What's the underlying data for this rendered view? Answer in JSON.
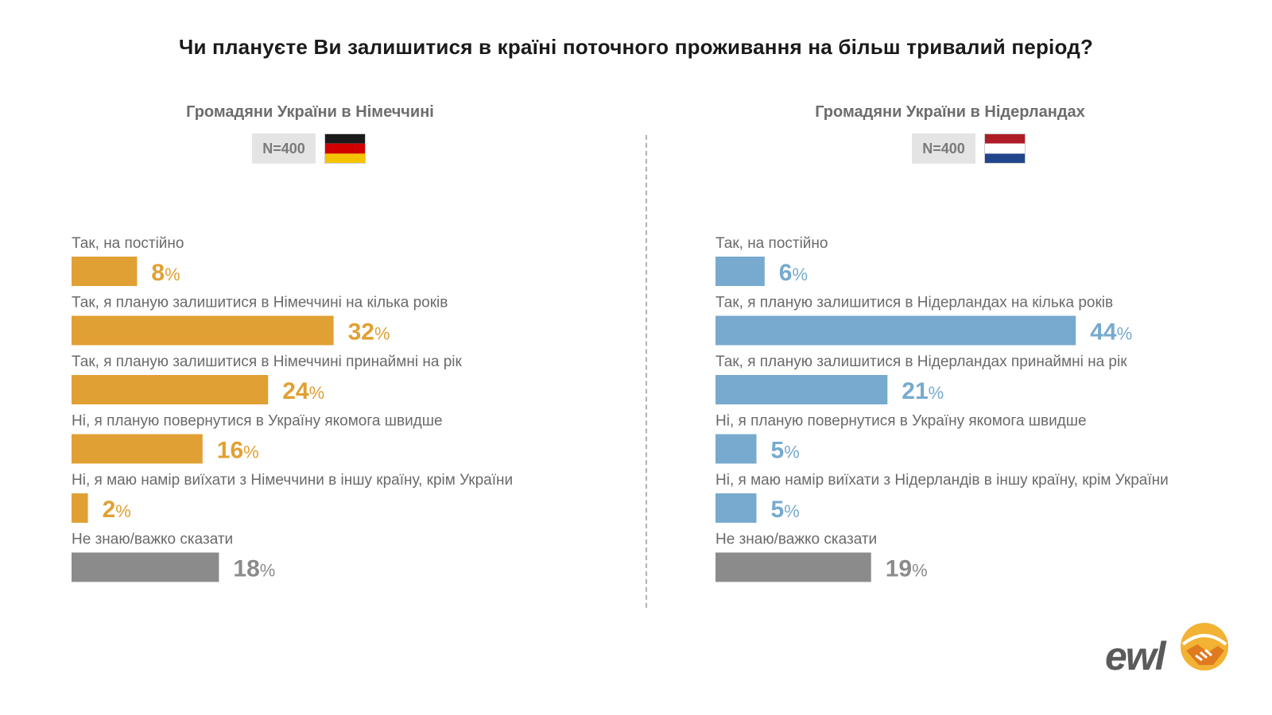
{
  "title": "Чи плануєте Ви залишитися в країні поточного проживання на більш тривалий період?",
  "colors": {
    "orange": "#E1A033",
    "blue": "#77AACE",
    "gray": "#8B8B8B"
  },
  "chart_data": [
    {
      "type": "bar",
      "title": "Громадяни України в Німеччині",
      "sample": "N=400",
      "flag": "germany-flag",
      "unit": "%",
      "categories": [
        "Так, на постійно",
        "Так, я планую залишитися в Німеччині на кілька років",
        "Так, я планую залишитися в Німеччині принаймні на рік",
        "Ні, я планую повернутися в Україну якомога швидше",
        "Ні, я маю намір виїхати з Німеччини в іншу країну, крім України",
        "Не знаю/важко сказати"
      ],
      "values": [
        8,
        32,
        24,
        16,
        2,
        18
      ],
      "bar_colors": [
        "orange",
        "orange",
        "orange",
        "orange",
        "orange",
        "gray"
      ]
    },
    {
      "type": "bar",
      "title": "Громадяни України в Нідерландах",
      "sample": "N=400",
      "flag": "netherlands-flag",
      "unit": "%",
      "categories": [
        "Так, на постійно",
        "Так, я планую залишитися в Нідерландах на кілька років",
        "Так, я планую залишитися в Нідерландах принаймні на рік",
        "Ні, я планую повернутися в Україну якомога швидше",
        "Ні, я маю намір виїхати з Нідерландів в іншу країну, крім України",
        "Не знаю/важко сказати"
      ],
      "values": [
        6,
        44,
        21,
        5,
        5,
        19
      ],
      "bar_colors": [
        "blue",
        "blue",
        "blue",
        "blue",
        "blue",
        "gray"
      ]
    }
  ],
  "logo": {
    "text": "ewl",
    "icon": "handshake-icon"
  }
}
